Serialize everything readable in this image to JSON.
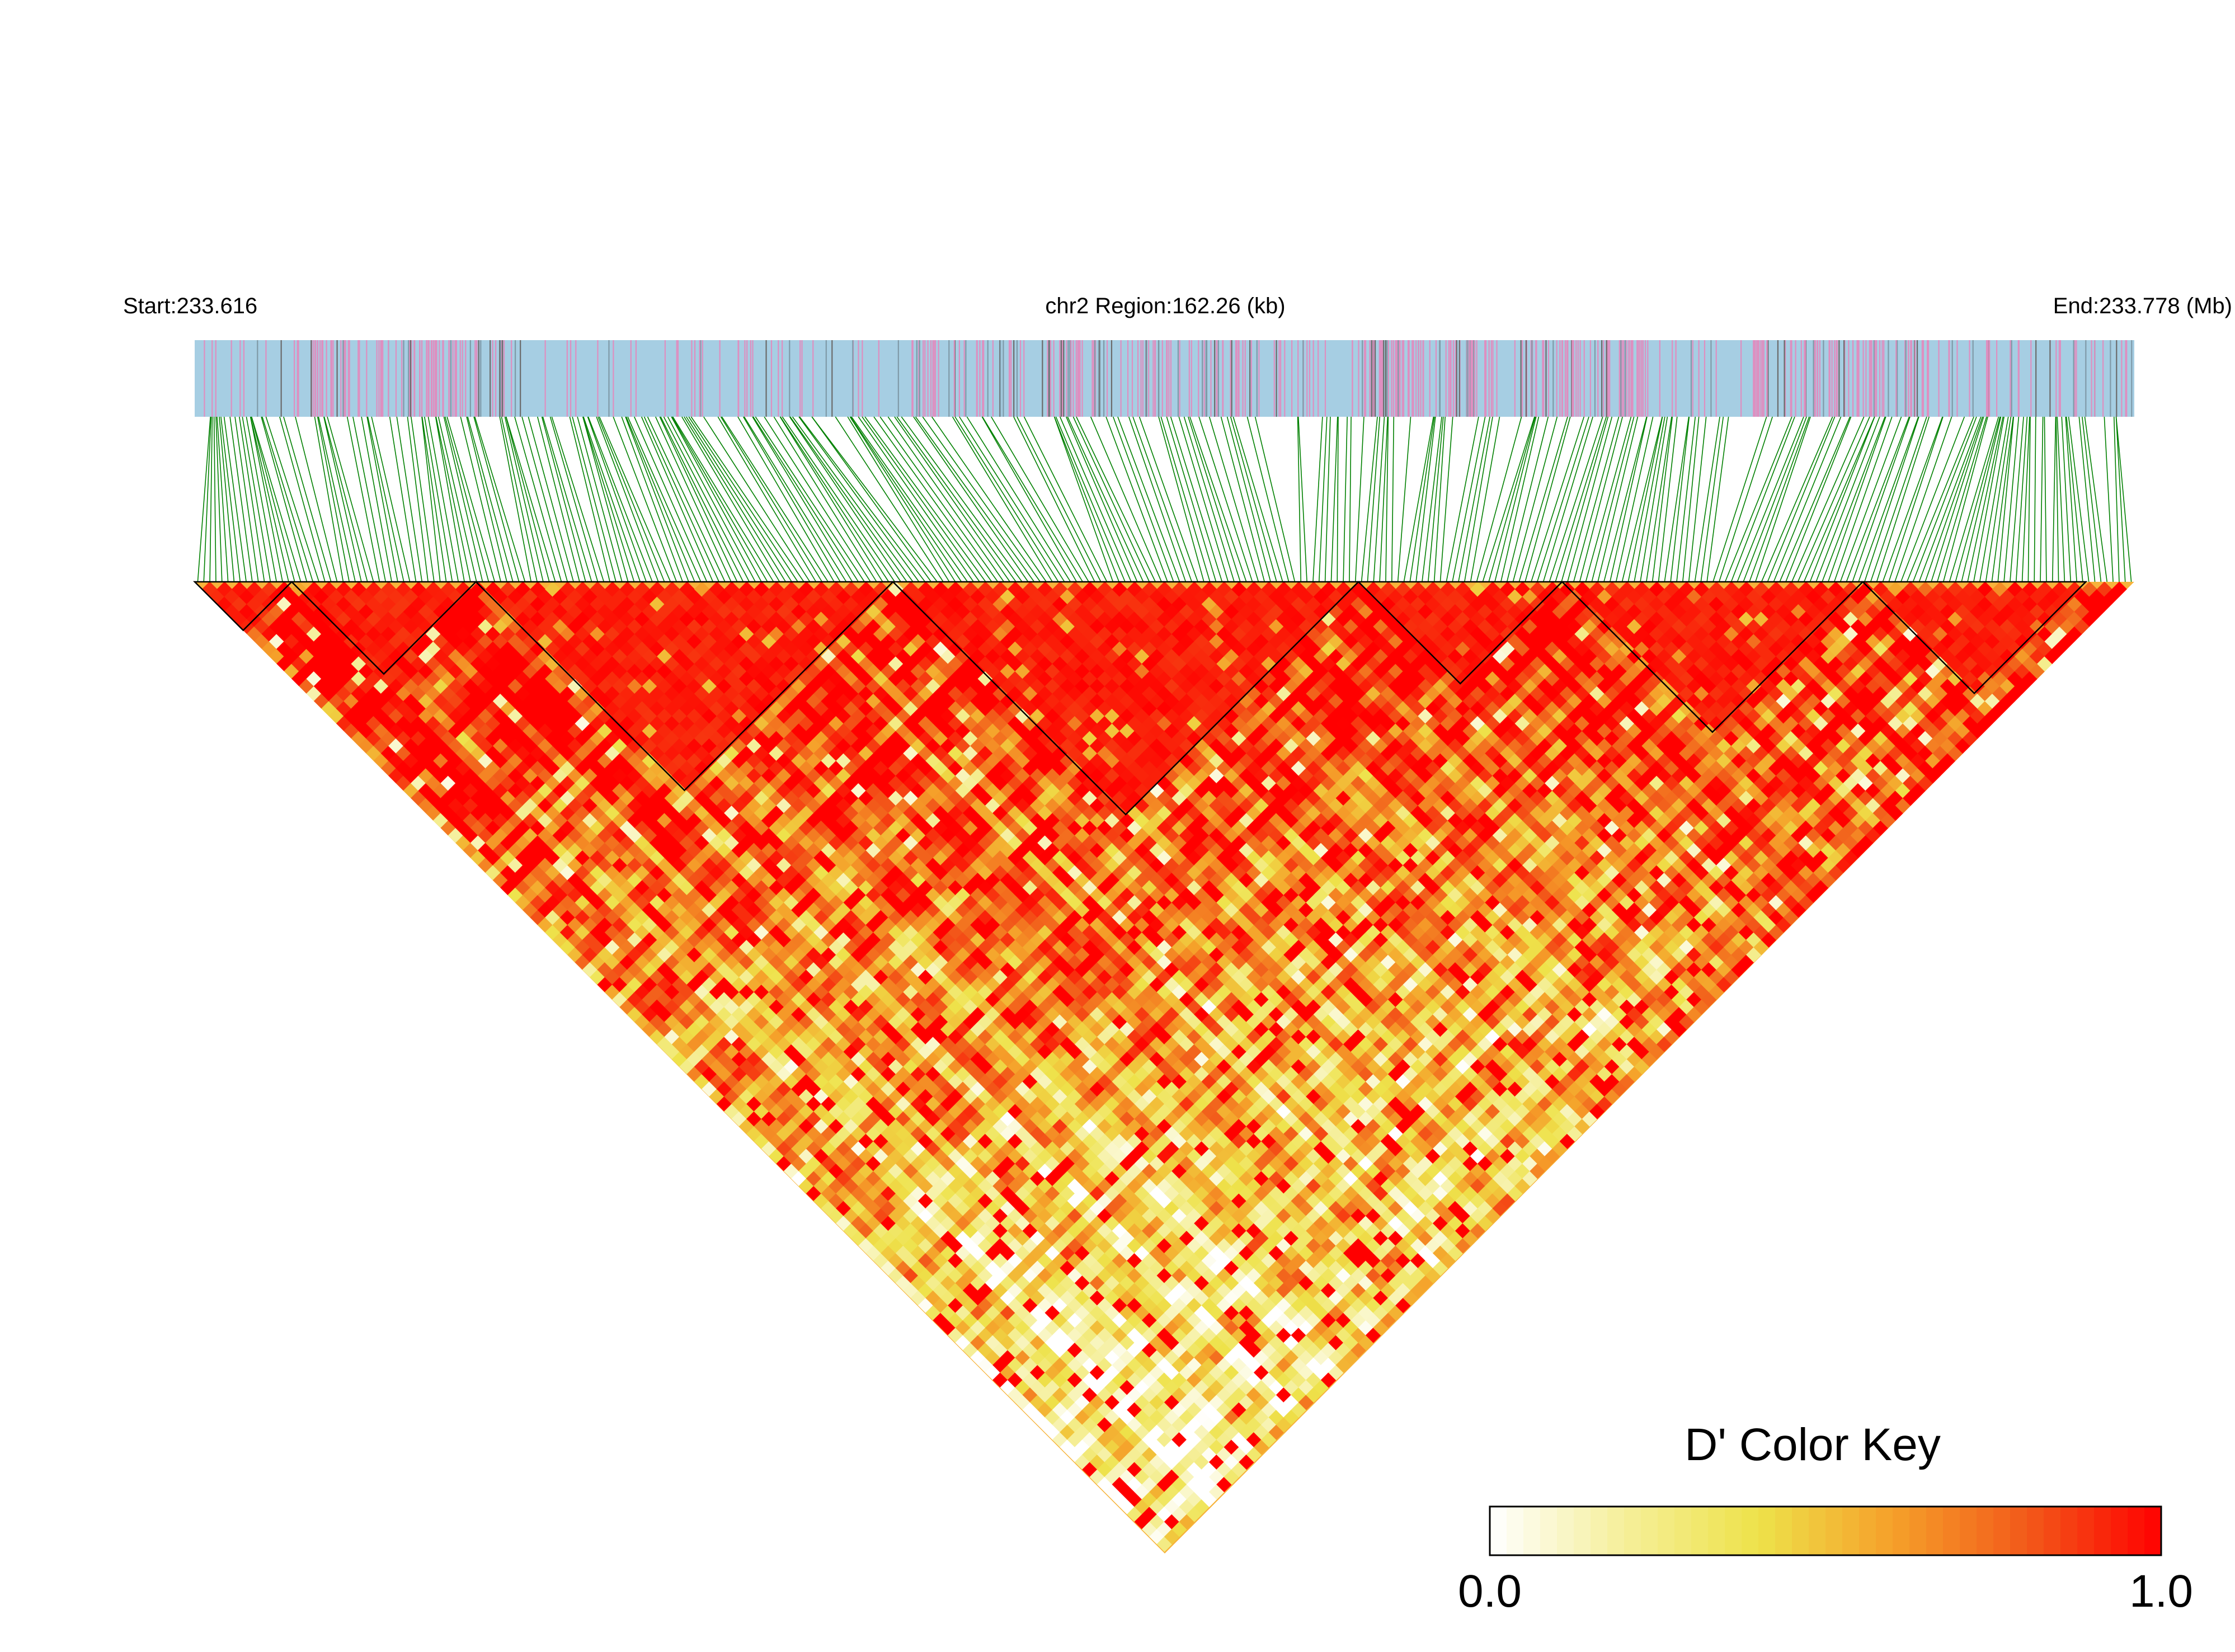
{
  "chart_data": {
    "type": "heatmap",
    "subtype": "LD block triangle",
    "header": {
      "start_label": "Start:233.616",
      "region_label": "chr2 Region:162.26 (kb)",
      "end_label": "End:233.778 (Mb)"
    },
    "region": {
      "chromosome": "chr2",
      "start_mb": 233.616,
      "end_mb": 233.778,
      "length_kb": 162.26
    },
    "snp_track": {
      "background_color": "#a6cee3",
      "marker_colors": [
        "#de8fc0",
        "#7f9aa8",
        "#6b6b6b"
      ],
      "connector_color": "#008000"
    },
    "ld_blocks": [
      [
        0.0,
        0.05
      ],
      [
        0.05,
        0.145
      ],
      [
        0.145,
        0.36
      ],
      [
        0.36,
        0.6
      ],
      [
        0.6,
        0.705
      ],
      [
        0.705,
        0.86
      ],
      [
        0.86,
        0.975
      ]
    ],
    "color_key": {
      "title": "D' Color Key",
      "min_label": "0.0",
      "max_label": "1.0",
      "min": 0.0,
      "max": 1.0,
      "stops": [
        "#ffffff",
        "#f5ef9a",
        "#eee24a",
        "#f5a02a",
        "#f25a1a",
        "#ff0000"
      ]
    }
  }
}
